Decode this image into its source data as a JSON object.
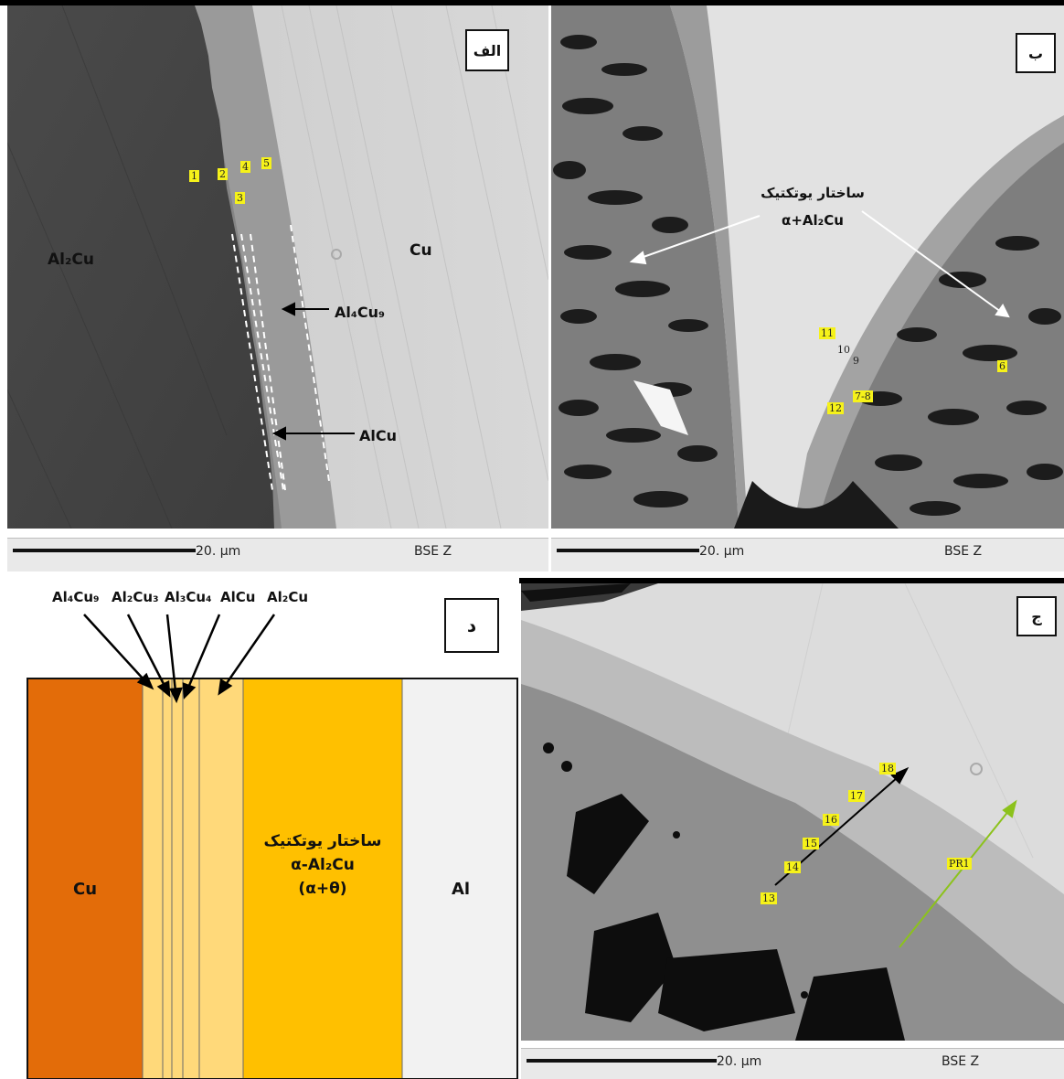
{
  "panels": {
    "alef": {
      "tag": "الف",
      "phase_left": "Al₂Cu",
      "phase_right": "Cu",
      "arrow_label_top": "Al₄Cu₉",
      "arrow_label_bottom": "AlCu",
      "points": [
        "1",
        "2",
        "3",
        "4",
        "5"
      ],
      "scale": "20. μm",
      "detector": "BSE Z"
    },
    "be": {
      "tag": "ب",
      "eutectic_line1": "ساختار یوتکتیک",
      "eutectic_line2": "α+Al₂Cu",
      "points": [
        "11",
        "10",
        "9",
        "7-8",
        "12",
        "6"
      ],
      "scale": "20. μm",
      "detector": "BSE Z"
    },
    "jim": {
      "tag": "ج",
      "points": [
        "13",
        "14",
        "15",
        "16",
        "17",
        "18"
      ],
      "profile": "PR1",
      "scale": "20. μm",
      "detector": "BSE Z"
    },
    "dal": {
      "tag": "د",
      "top_labels": [
        "Al₄Cu₉",
        "Al₂Cu₃",
        "Al₃Cu₄",
        "AlCu",
        "Al₂Cu"
      ],
      "layer_cu": "Cu",
      "eutectic_line1": "ساختار یوتکتیک",
      "eutectic_line2": "α-Al₂Cu",
      "eutectic_line3": "(α+θ)",
      "layer_al": "Al"
    }
  },
  "colors": {
    "cu_layer": "#e36c09",
    "imc_light": "#ffd97a",
    "eutectic_layer": "#ffc000",
    "al_layer": "#f2f2f2",
    "point_label_bg": "#f6f21a",
    "profile_arrow": "#8cc21c"
  }
}
